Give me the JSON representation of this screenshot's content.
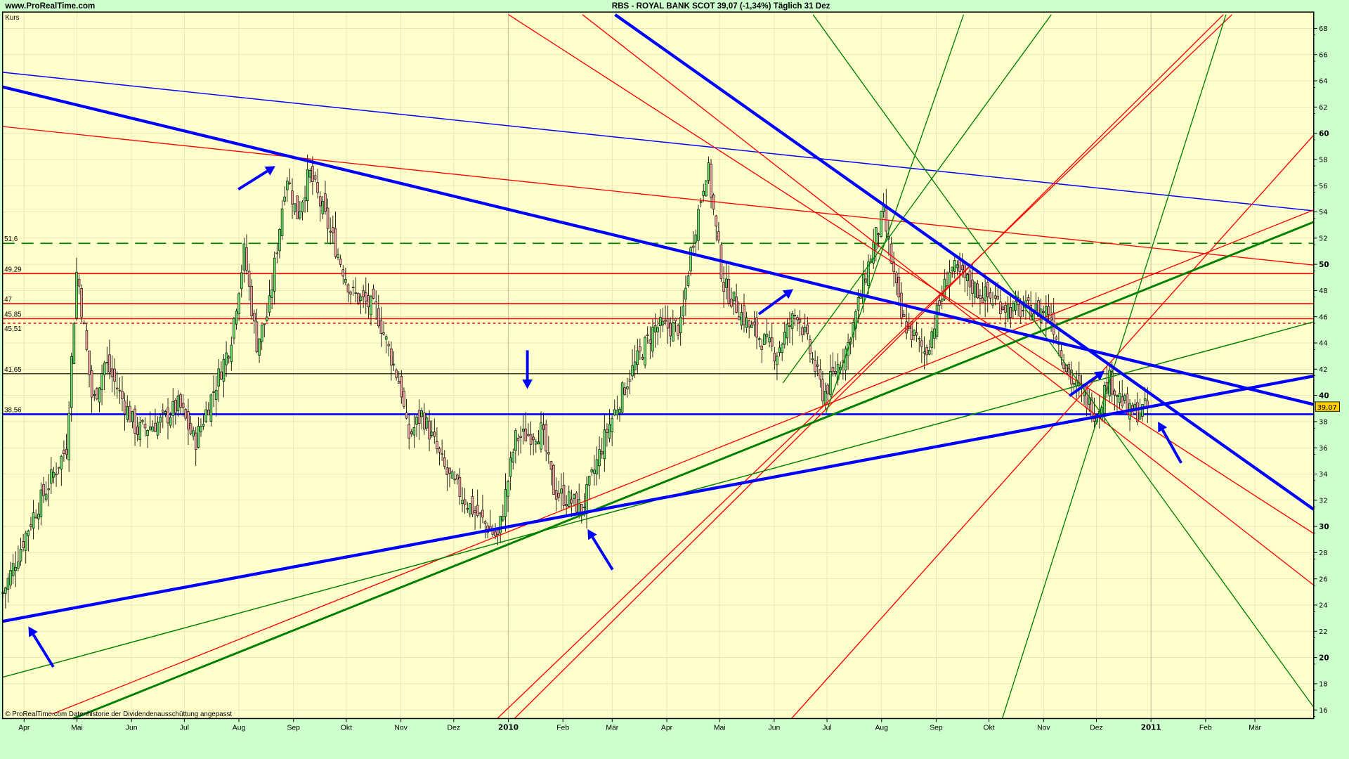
{
  "header": {
    "site": "www.ProRealTime.com",
    "title": "RBS - ROYAL BANK SCOT    39,07 (-1,34%)   Täglich  31 Dez"
  },
  "footer_note": "© ProRealTime.com  Datenhistorie der Dividendenausschüttung angepasst",
  "colors": {
    "background": "#ccffcc",
    "plot_background": "#ffffcc",
    "candle_up": "#66dd66",
    "candle_down": "#f0a0a0",
    "trend_blue": "#0000ff",
    "trend_red": "#ff0000",
    "trend_green": "#008000",
    "last_price_badge": "#ffcc00"
  },
  "chart_data": {
    "type": "candlestick",
    "title": "RBS - ROYAL BANK SCOT",
    "panel_label": "Kurs",
    "last_price": "39,07",
    "change": "-1,34%",
    "ylim": [
      15,
      69
    ],
    "y_ticks": [
      "68",
      "66",
      "64",
      "62",
      "60",
      "58",
      "56",
      "54",
      "52",
      "50",
      "48",
      "46",
      "44",
      "42",
      "40",
      "38",
      "36",
      "34",
      "32",
      "30",
      "28",
      "26",
      "24",
      "22",
      "20",
      "18",
      "16"
    ],
    "x_ticks": [
      "Apr",
      "Mai",
      "Jun",
      "Jul",
      "Aug",
      "Sep",
      "Okt",
      "Nov",
      "Dez",
      "2010",
      "Feb",
      "Mär",
      "Apr",
      "Mai",
      "Jun",
      "Jul",
      "Aug",
      "Sep",
      "Okt",
      "Nov",
      "Dez",
      "2011",
      "Feb",
      "Mär"
    ],
    "grid": true,
    "horizontal_levels": [
      {
        "label": "51,6",
        "value": 51.6,
        "color": "#008000",
        "style": "dashed"
      },
      {
        "label": "49,29",
        "value": 49.29,
        "color": "#ff0000",
        "style": "solid"
      },
      {
        "label": "47",
        "value": 47,
        "color": "#ff0000",
        "style": "solid"
      },
      {
        "label": "45,85",
        "value": 45.85,
        "color": "#ff0000",
        "style": "solid"
      },
      {
        "label": "45,51",
        "value": 45.51,
        "color": "#ff0000",
        "style": "dotted"
      },
      {
        "label": "41,65",
        "value": 41.65,
        "color": "#000000",
        "style": "thin"
      },
      {
        "label": "38,56",
        "value": 38.56,
        "color": "#0000ff",
        "style": "thick"
      }
    ],
    "closes": [
      {
        "date": "2009-03-20",
        "close": 24.9
      },
      {
        "date": "2009-04-06",
        "close": 30.8
      },
      {
        "date": "2009-04-25",
        "close": 36.0
      },
      {
        "date": "2009-05-01",
        "close": 49.8
      },
      {
        "date": "2009-05-10",
        "close": 39.3
      },
      {
        "date": "2009-05-17",
        "close": 42.6
      },
      {
        "date": "2009-06-04",
        "close": 37.3
      },
      {
        "date": "2009-06-18",
        "close": 38.0
      },
      {
        "date": "2009-06-28",
        "close": 39.3
      },
      {
        "date": "2009-07-07",
        "close": 36.4
      },
      {
        "date": "2009-07-27",
        "close": 43.9
      },
      {
        "date": "2009-08-04",
        "close": 51.0
      },
      {
        "date": "2009-08-11",
        "close": 43.9
      },
      {
        "date": "2009-08-18",
        "close": 46.5
      },
      {
        "date": "2009-08-28",
        "close": 57.0
      },
      {
        "date": "2009-09-03",
        "close": 53.7
      },
      {
        "date": "2009-09-10",
        "close": 57.0
      },
      {
        "date": "2009-09-22",
        "close": 52.4
      },
      {
        "date": "2009-10-04",
        "close": 47.8
      },
      {
        "date": "2009-10-18",
        "close": 46.5
      },
      {
        "date": "2009-11-01",
        "close": 40.6
      },
      {
        "date": "2009-11-05",
        "close": 36.7
      },
      {
        "date": "2009-11-13",
        "close": 38.6
      },
      {
        "date": "2009-11-27",
        "close": 34.0
      },
      {
        "date": "2009-12-11",
        "close": 31.4
      },
      {
        "date": "2009-12-26",
        "close": 29.1
      },
      {
        "date": "2010-01-05",
        "close": 36.7
      },
      {
        "date": "2010-01-20",
        "close": 37.3
      },
      {
        "date": "2010-01-27",
        "close": 32.7
      },
      {
        "date": "2010-02-12",
        "close": 31.4
      },
      {
        "date": "2010-02-26",
        "close": 37.3
      },
      {
        "date": "2010-03-10",
        "close": 41.3
      },
      {
        "date": "2010-03-25",
        "close": 45.2
      },
      {
        "date": "2010-04-09",
        "close": 45.2
      },
      {
        "date": "2010-04-14",
        "close": 50.5
      },
      {
        "date": "2010-04-24",
        "close": 57.7
      },
      {
        "date": "2010-05-03",
        "close": 48.5
      },
      {
        "date": "2010-05-18",
        "close": 45.2
      },
      {
        "date": "2010-06-02",
        "close": 43.2
      },
      {
        "date": "2010-06-14",
        "close": 46.5
      },
      {
        "date": "2010-06-29",
        "close": 40.0
      },
      {
        "date": "2010-07-13",
        "close": 43.9
      },
      {
        "date": "2010-07-28",
        "close": 51.8
      },
      {
        "date": "2010-08-02",
        "close": 53.8
      },
      {
        "date": "2010-08-12",
        "close": 45.9
      },
      {
        "date": "2010-08-26",
        "close": 43.2
      },
      {
        "date": "2010-09-09",
        "close": 49.8
      },
      {
        "date": "2010-09-26",
        "close": 47.8
      },
      {
        "date": "2010-10-15",
        "close": 46.5
      },
      {
        "date": "2010-11-04",
        "close": 46.5
      },
      {
        "date": "2010-11-16",
        "close": 41.3
      },
      {
        "date": "2010-12-01",
        "close": 38.6
      },
      {
        "date": "2010-12-08",
        "close": 41.3
      },
      {
        "date": "2010-12-20",
        "close": 38.6
      },
      {
        "date": "2010-12-31",
        "close": 39.07
      }
    ]
  }
}
